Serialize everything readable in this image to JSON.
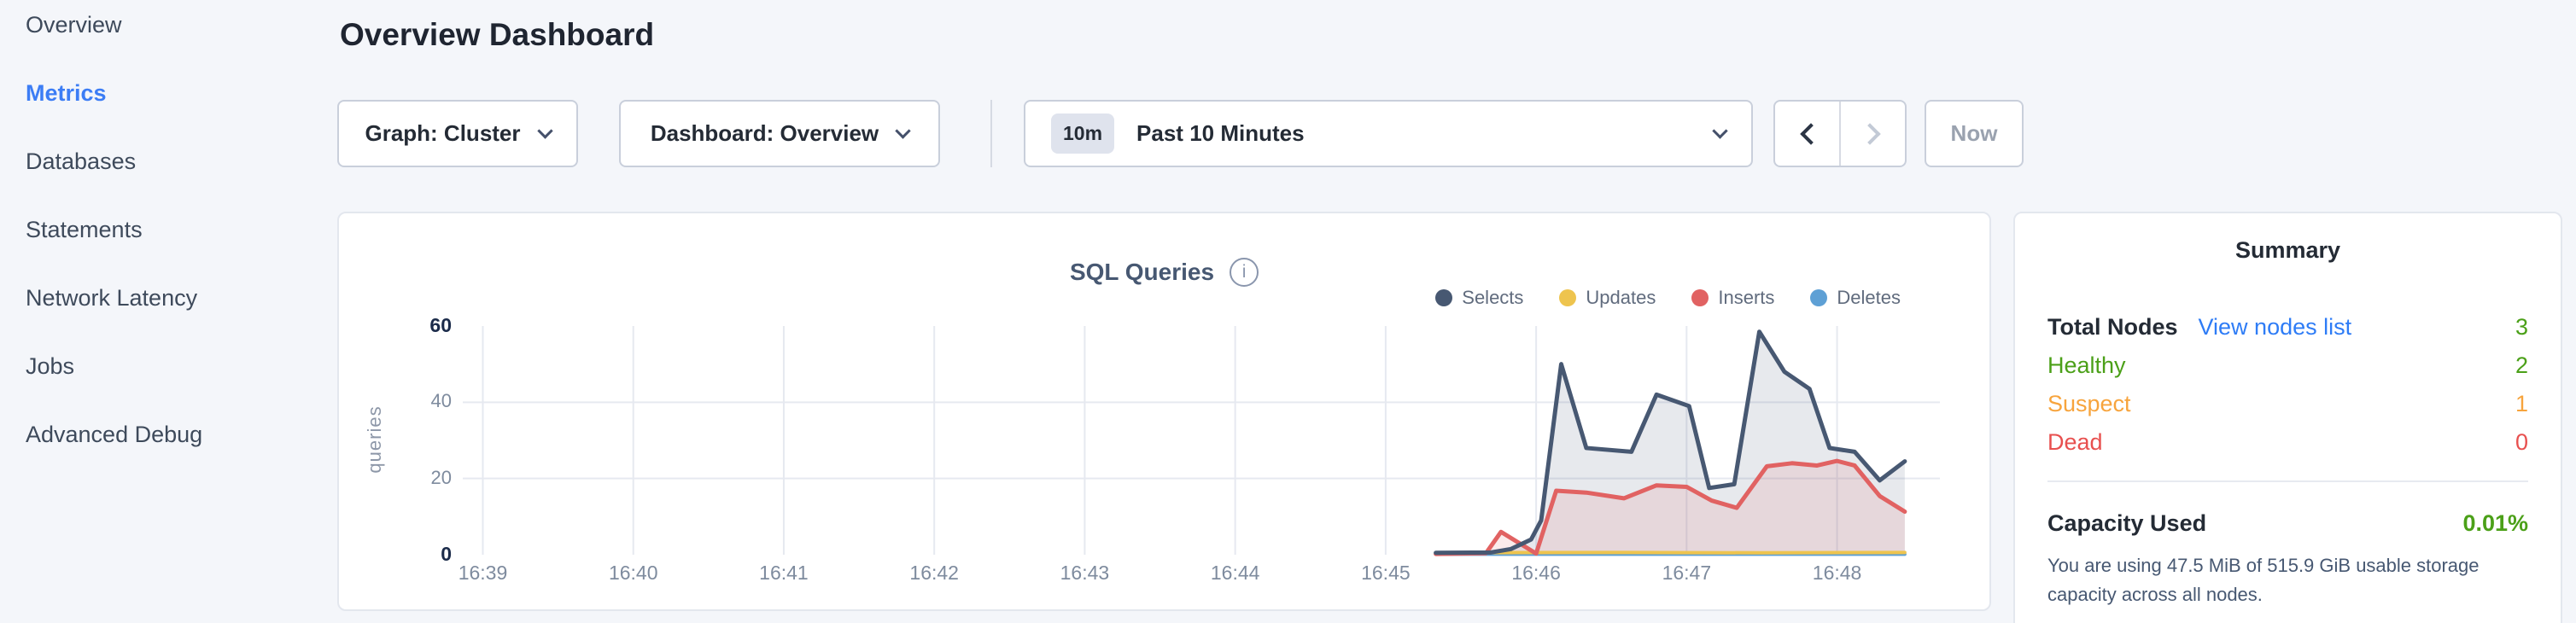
{
  "sidebar": {
    "items": [
      {
        "id": "overview",
        "label": "Overview",
        "active": false
      },
      {
        "id": "metrics",
        "label": "Metrics",
        "active": true
      },
      {
        "id": "databases",
        "label": "Databases",
        "active": false
      },
      {
        "id": "statements",
        "label": "Statements",
        "active": false
      },
      {
        "id": "network-latency",
        "label": "Network Latency",
        "active": false
      },
      {
        "id": "jobs",
        "label": "Jobs",
        "active": false
      },
      {
        "id": "advanced-debug",
        "label": "Advanced Debug",
        "active": false
      }
    ]
  },
  "header": {
    "title": "Overview Dashboard"
  },
  "toolbar": {
    "graph_dropdown_label": "Graph: Cluster",
    "dashboard_dropdown_label": "Dashboard: Overview",
    "time_badge": "10m",
    "time_label": "Past 10 Minutes",
    "now_label": "Now"
  },
  "icons": {
    "graph_dropdown": "chevron-down-icon",
    "dashboard_dropdown": "chevron-down-icon",
    "time_dropdown": "chevron-down-icon",
    "prev": "chevron-left-icon",
    "next": "chevron-right-icon",
    "chart_info": "info-circle-icon",
    "legend_marker": "dot"
  },
  "chart_data": {
    "type": "area",
    "title": "SQL Queries",
    "ylabel": "queries",
    "xlabel": "",
    "grid": {
      "h_lines": [
        20,
        40
      ],
      "v_lines": "every-minute"
    },
    "legend_position": "top-right",
    "ylim": [
      0,
      60
    ],
    "y_ticks": [
      0,
      20,
      40,
      60
    ],
    "y_strong_ticks": [
      0,
      60
    ],
    "x_ticks": [
      "16:39",
      "16:40",
      "16:41",
      "16:42",
      "16:43",
      "16:44",
      "16:45",
      "16:46",
      "16:47",
      "16:48"
    ],
    "x_window": [
      "16:38:52",
      "16:48:41"
    ],
    "series": [
      {
        "name": "Selects",
        "color": "#475872",
        "fill": "rgba(71,88,114,0.13)",
        "points": [
          [
            "16:45:20",
            0.5
          ],
          [
            "16:45:42",
            0.6
          ],
          [
            "16:45:50",
            1.5
          ],
          [
            "16:45:58",
            4
          ],
          [
            "16:46:02",
            9
          ],
          [
            "16:46:10",
            50
          ],
          [
            "16:46:20",
            28
          ],
          [
            "16:46:38",
            27
          ],
          [
            "16:46:48",
            42
          ],
          [
            "16:47:01",
            39
          ],
          [
            "16:47:09",
            17.5
          ],
          [
            "16:47:19",
            18.5
          ],
          [
            "16:47:29",
            58.5
          ],
          [
            "16:47:39",
            48
          ],
          [
            "16:47:49",
            43.5
          ],
          [
            "16:47:57",
            28
          ],
          [
            "16:48:07",
            27
          ],
          [
            "16:48:17",
            19.5
          ],
          [
            "16:48:27",
            24.5
          ]
        ]
      },
      {
        "name": "Updates",
        "color": "#eec44e",
        "fill": null,
        "points": [
          [
            "16:45:20",
            0.5
          ],
          [
            "16:46:30",
            0.6
          ],
          [
            "16:47:30",
            0.5
          ],
          [
            "16:48:27",
            0.6
          ]
        ]
      },
      {
        "name": "Inserts",
        "color": "#e16262",
        "fill": "rgba(225,98,98,0.13)",
        "points": [
          [
            "16:45:20",
            0.2
          ],
          [
            "16:45:40",
            0.4
          ],
          [
            "16:45:46",
            6
          ],
          [
            "16:46:00",
            0.3
          ],
          [
            "16:46:08",
            16.8
          ],
          [
            "16:46:20",
            16.3
          ],
          [
            "16:46:35",
            14.8
          ],
          [
            "16:46:48",
            18.2
          ],
          [
            "16:47:00",
            17.8
          ],
          [
            "16:47:10",
            14.2
          ],
          [
            "16:47:20",
            12.3
          ],
          [
            "16:47:32",
            23.2
          ],
          [
            "16:47:42",
            24
          ],
          [
            "16:47:52",
            23.4
          ],
          [
            "16:48:00",
            24.6
          ],
          [
            "16:48:07",
            23.4
          ],
          [
            "16:48:17",
            15.4
          ],
          [
            "16:48:27",
            11.3
          ]
        ]
      },
      {
        "name": "Deletes",
        "color": "#5ea0d5",
        "fill": null,
        "points": [
          [
            "16:45:20",
            0.15
          ],
          [
            "16:48:27",
            0.15
          ]
        ]
      }
    ]
  },
  "summary": {
    "title": "Summary",
    "total_nodes_label": "Total Nodes",
    "view_nodes_link": "View nodes list",
    "total_nodes_value": "3",
    "node_rows": [
      {
        "id": "healthy",
        "label": "Healthy",
        "value": "2",
        "color": "#4ba018"
      },
      {
        "id": "suspect",
        "label": "Suspect",
        "value": "1",
        "color": "#f7a43d"
      },
      {
        "id": "dead",
        "label": "Dead",
        "value": "0",
        "color": "#e8504f"
      }
    ],
    "capacity_label": "Capacity Used",
    "capacity_value": "0.01%",
    "capacity_description": "You are using 47.5 MiB of 515.9 GiB usable storage capacity across all nodes.",
    "colors": {
      "green": "#4ba018",
      "link_blue": "#2e7cf6",
      "active_blue": "#3c7df5"
    }
  }
}
